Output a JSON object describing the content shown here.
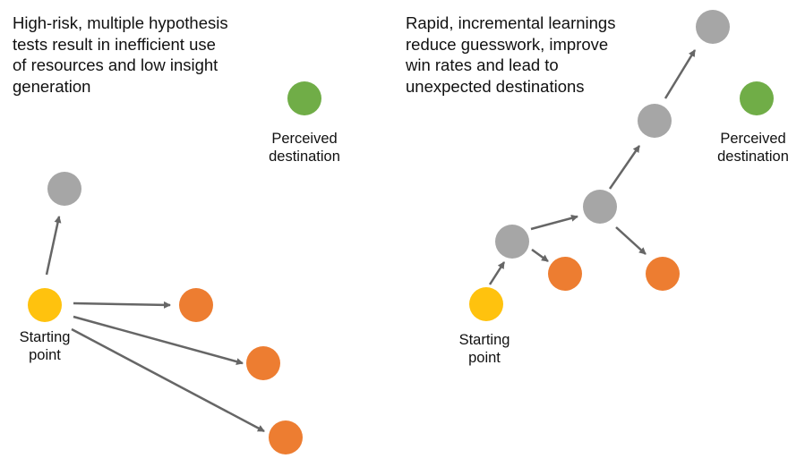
{
  "left_panel": {
    "caption": "High-risk, multiple hypothesis\ntests result in inefficient use\nof resources and low insight\ngeneration",
    "start_label": "Starting\npoint",
    "destination_label": "Perceived\ndestination"
  },
  "right_panel": {
    "caption": "Rapid, incremental learnings\nreduce guesswork, improve\nwin rates and lead to\nunexpected destinations",
    "start_label": "Starting\npoint",
    "destination_label": "Perceived\ndestination"
  },
  "colors": {
    "start": "#FFC20E",
    "experiment": "#A6A6A6",
    "failed": "#ED7D31",
    "destination": "#70AD47",
    "arrow": "#666666"
  }
}
